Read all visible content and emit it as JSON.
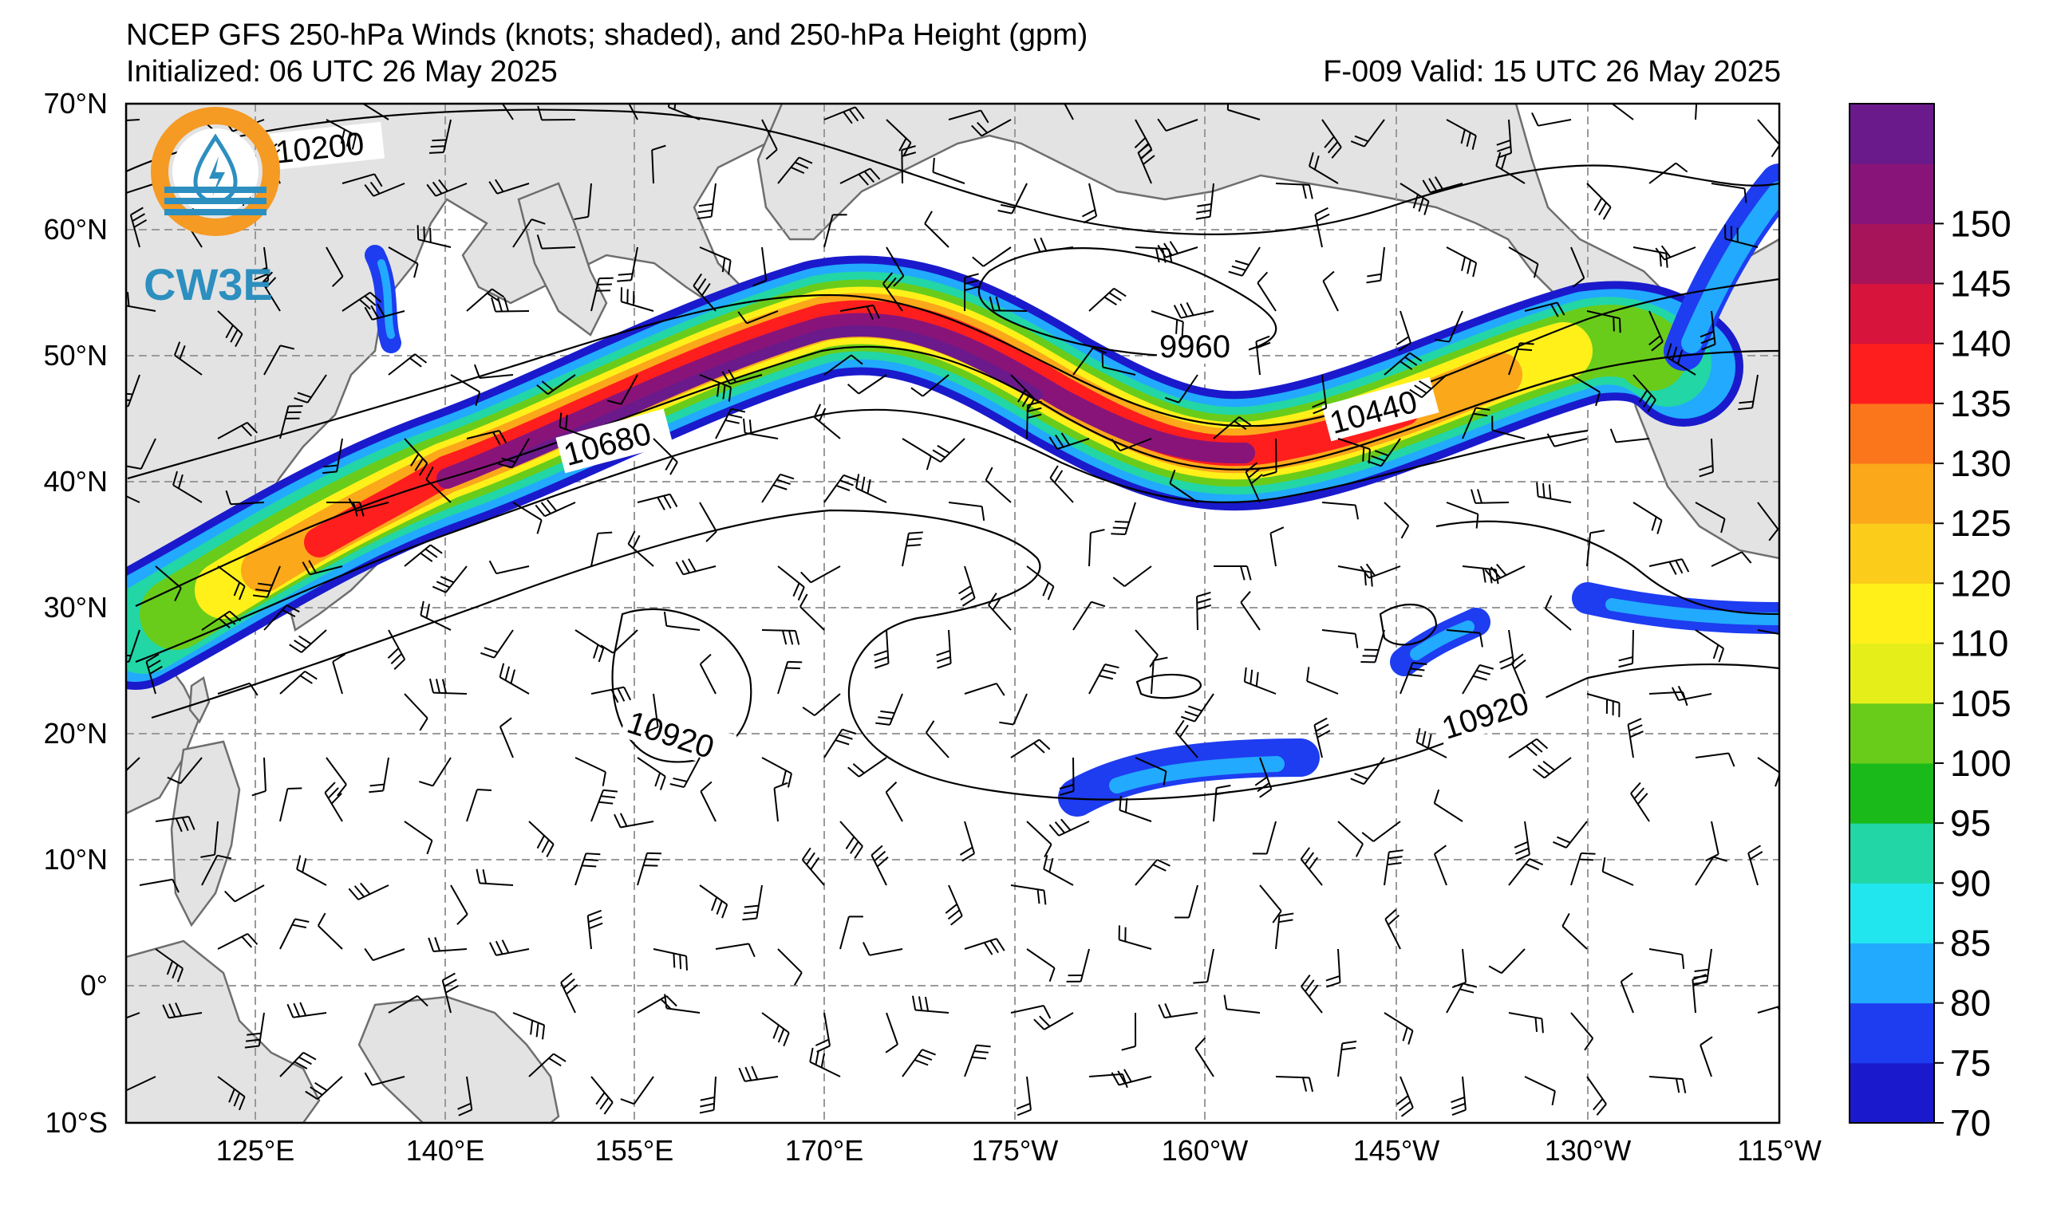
{
  "title": "NCEP GFS 250-hPa Winds (knots; shaded), and 250-hPa Height (gpm)",
  "initialized": "Initialized: 06 UTC 26 May 2025",
  "forecast_valid": "F-009  Valid: 15 UTC 26 May 2025",
  "logo": {
    "text": "CW3E",
    "icon": "cw3e-drop-logo-icon",
    "ring_color": "#f59a23",
    "wave_color": "#2c8fbf"
  },
  "lat_labels": [
    "70°N",
    "60°N",
    "50°N",
    "40°N",
    "30°N",
    "20°N",
    "10°N",
    "0°",
    "10°S"
  ],
  "lon_labels": [
    "125°E",
    "140°E",
    "155°E",
    "170°E",
    "175°W",
    "160°W",
    "145°W",
    "130°W",
    "115°W"
  ],
  "colorbar": {
    "unit": "knots",
    "ticks": [
      "70",
      "75",
      "80",
      "85",
      "90",
      "95",
      "100",
      "105",
      "110",
      "120",
      "125",
      "130",
      "135",
      "140",
      "145",
      "150"
    ],
    "colors": [
      "#1a1acc",
      "#1e3cf0",
      "#22aaff",
      "#22e6ee",
      "#22d6a6",
      "#1aba1a",
      "#6acc1a",
      "#e6ee1a",
      "#fff01a",
      "#fbcc1a",
      "#fba81a",
      "#fb761a",
      "#ff1e1e",
      "#d6143c",
      "#a8145a",
      "#88147a",
      "#6a1a8a"
    ]
  },
  "contour_labels": [
    "10200",
    "10680",
    "9960",
    "10440",
    "10920",
    "10920"
  ],
  "colors": {
    "land": "#e3e3e3",
    "coast": "#6e6e6e",
    "grid": "#9a9a9a",
    "contour": "#000000"
  }
}
